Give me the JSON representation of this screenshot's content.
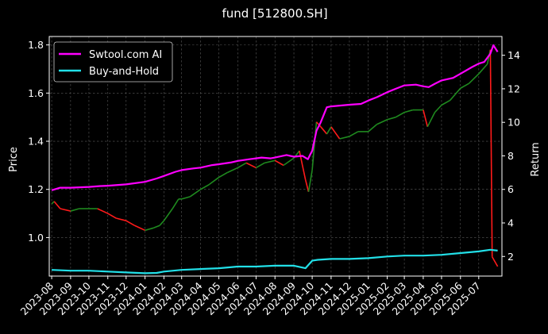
{
  "chart_data": {
    "type": "line",
    "title": "fund [512800.SH]",
    "ylabel_left": "Price",
    "ylabel_right": "Return",
    "ylim_left": [
      0.84,
      1.835
    ],
    "ylim_right": [
      0.83,
      15.12
    ],
    "yticks_left": [
      "1.0",
      "1.2",
      "1.4",
      "1.6",
      "1.8"
    ],
    "yticks_right": [
      "2",
      "4",
      "6",
      "8",
      "10",
      "12",
      "14"
    ],
    "x_tick_labels": [
      "2023-08",
      "2023-09",
      "2023-10",
      "2023-11",
      "2023-12",
      "2024-01",
      "2024-02",
      "2024-03",
      "2024-04",
      "2024-05",
      "2024-06",
      "2024-07",
      "2024-08",
      "2024-09",
      "2024-10",
      "2024-11",
      "2024-12",
      "2025-01",
      "2025-02",
      "2025-03",
      "2025-04",
      "2025-05",
      "2025-06",
      "2025-07"
    ],
    "grid": true,
    "legend": {
      "position": "top-left",
      "entries": [
        "Swtool.com AI",
        "Buy-and-Hold"
      ]
    },
    "colors": {
      "ai": "#ff00ff",
      "bh": "#22e0e8",
      "up": "#1f8a1f",
      "down": "#ff1a1a",
      "grid": "#5a5a5a",
      "spine": "#ffffff"
    },
    "series": [
      {
        "name": "Swtool.com AI",
        "axis": "right",
        "x": [
          "2023-08-01",
          "2023-08-15",
          "2023-09-01",
          "2023-10-01",
          "2023-10-20",
          "2023-11-01",
          "2023-12-01",
          "2024-01-01",
          "2024-01-20",
          "2024-02-01",
          "2024-02-20",
          "2024-03-01",
          "2024-03-20",
          "2024-04-01",
          "2024-04-20",
          "2024-05-01",
          "2024-05-20",
          "2024-06-01",
          "2024-06-20",
          "2024-07-01",
          "2024-07-10",
          "2024-07-25",
          "2024-08-01",
          "2024-08-20",
          "2024-09-01",
          "2024-09-15",
          "2024-09-24",
          "2024-09-28",
          "2024-10-01",
          "2024-10-08",
          "2024-10-15",
          "2024-10-25",
          "2024-11-01",
          "2024-11-15",
          "2024-12-01",
          "2024-12-20",
          "2025-01-01",
          "2025-01-15",
          "2025-02-01",
          "2025-02-15",
          "2025-03-01",
          "2025-03-20",
          "2025-04-01",
          "2025-04-10",
          "2025-04-20",
          "2025-05-01",
          "2025-05-20",
          "2025-06-01",
          "2025-06-20",
          "2025-07-01",
          "2025-07-10",
          "2025-07-20",
          "2025-07-25",
          "2025-08-01"
        ],
        "y": [
          5.95,
          6.1,
          6.1,
          6.15,
          6.2,
          6.22,
          6.3,
          6.45,
          6.65,
          6.8,
          7.05,
          7.15,
          7.25,
          7.3,
          7.45,
          7.5,
          7.6,
          7.7,
          7.8,
          7.85,
          7.9,
          7.85,
          7.9,
          8.05,
          7.95,
          8.0,
          7.8,
          8.1,
          8.3,
          9.5,
          10.0,
          10.9,
          10.95,
          11.0,
          11.05,
          11.1,
          11.3,
          11.5,
          11.8,
          12.0,
          12.2,
          12.25,
          12.15,
          12.1,
          12.3,
          12.5,
          12.65,
          12.9,
          13.3,
          13.5,
          13.6,
          14.1,
          14.6,
          14.2
        ]
      },
      {
        "name": "Buy-and-Hold",
        "axis": "right",
        "x": [
          "2023-08-01",
          "2023-09-01",
          "2023-10-01",
          "2023-11-01",
          "2023-12-01",
          "2024-01-01",
          "2024-01-20",
          "2024-02-01",
          "2024-03-01",
          "2024-04-01",
          "2024-05-01",
          "2024-06-01",
          "2024-07-01",
          "2024-08-01",
          "2024-09-01",
          "2024-09-20",
          "2024-10-01",
          "2024-10-10",
          "2024-11-01",
          "2024-12-01",
          "2025-01-01",
          "2025-02-01",
          "2025-03-01",
          "2025-04-01",
          "2025-05-01",
          "2025-06-01",
          "2025-07-01",
          "2025-07-20",
          "2025-08-01"
        ],
        "y": [
          1.2,
          1.15,
          1.15,
          1.1,
          1.05,
          1.0,
          1.02,
          1.1,
          1.2,
          1.25,
          1.3,
          1.4,
          1.4,
          1.45,
          1.45,
          1.3,
          1.75,
          1.8,
          1.85,
          1.85,
          1.9,
          2.0,
          2.05,
          2.05,
          2.1,
          2.2,
          2.3,
          2.4,
          2.35
        ]
      },
      {
        "name": "",
        "kind": "price",
        "axis": "left",
        "x": [
          "2023-08-01",
          "2023-08-05",
          "2023-08-15",
          "2023-09-01",
          "2023-09-15",
          "2023-10-01",
          "2023-10-15",
          "2023-11-01",
          "2023-11-15",
          "2023-12-01",
          "2023-12-15",
          "2024-01-01",
          "2024-01-15",
          "2024-01-25",
          "2024-02-01",
          "2024-02-15",
          "2024-02-25",
          "2024-03-01",
          "2024-03-15",
          "2024-04-01",
          "2024-04-15",
          "2024-05-01",
          "2024-05-15",
          "2024-06-01",
          "2024-06-15",
          "2024-07-01",
          "2024-07-15",
          "2024-08-01",
          "2024-08-15",
          "2024-09-01",
          "2024-09-10",
          "2024-09-20",
          "2024-09-25",
          "2024-10-01",
          "2024-10-08",
          "2024-10-15",
          "2024-10-25",
          "2024-11-01",
          "2024-11-15",
          "2024-12-01",
          "2024-12-15",
          "2025-01-01",
          "2025-01-15",
          "2025-02-01",
          "2025-02-15",
          "2025-03-01",
          "2025-03-15",
          "2025-04-01",
          "2025-04-08",
          "2025-04-20",
          "2025-05-01",
          "2025-05-15",
          "2025-06-01",
          "2025-06-15",
          "2025-07-01",
          "2025-07-15",
          "2025-07-20",
          "2025-07-23",
          "2025-08-01"
        ],
        "y": [
          1.14,
          1.15,
          1.12,
          1.11,
          1.12,
          1.12,
          1.12,
          1.1,
          1.08,
          1.07,
          1.05,
          1.03,
          1.04,
          1.05,
          1.07,
          1.12,
          1.16,
          1.16,
          1.17,
          1.2,
          1.22,
          1.25,
          1.27,
          1.29,
          1.31,
          1.29,
          1.31,
          1.32,
          1.3,
          1.33,
          1.36,
          1.24,
          1.19,
          1.28,
          1.48,
          1.46,
          1.43,
          1.46,
          1.41,
          1.42,
          1.44,
          1.44,
          1.47,
          1.49,
          1.5,
          1.52,
          1.53,
          1.53,
          1.46,
          1.52,
          1.55,
          1.57,
          1.62,
          1.64,
          1.68,
          1.72,
          1.78,
          0.92,
          0.88
        ]
      }
    ]
  }
}
